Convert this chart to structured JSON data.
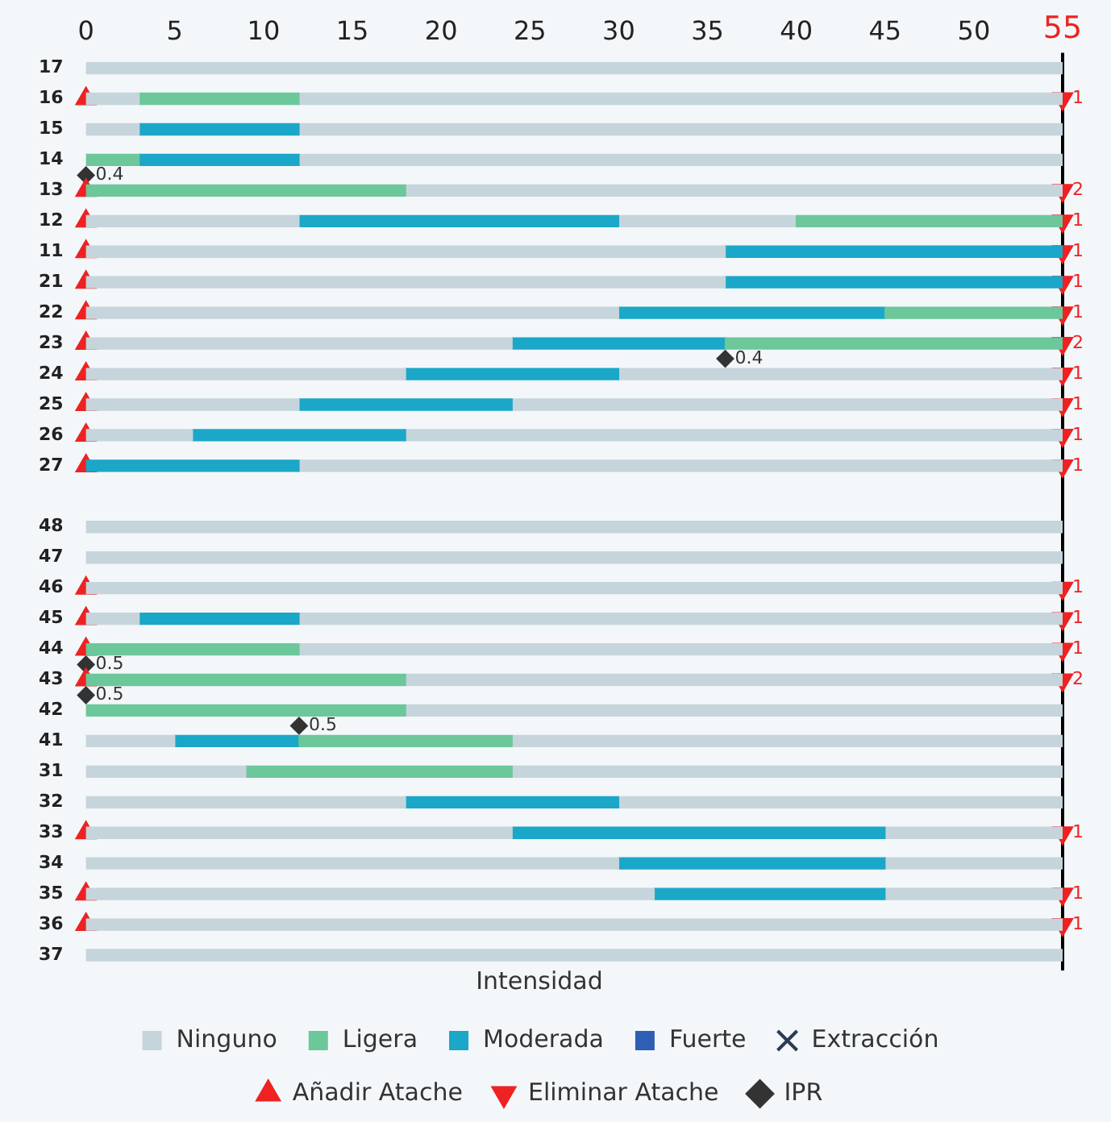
{
  "chart_data": {
    "type": "bar",
    "orientation": "horizontal",
    "categories": [
      "17",
      "16",
      "15",
      "14",
      "13",
      "12",
      "11",
      "21",
      "22",
      "23",
      "24",
      "25",
      "26",
      "27",
      null,
      "48",
      "47",
      "46",
      "45",
      "44",
      "43",
      "42",
      "41",
      "31",
      "32",
      "33",
      "34",
      "35",
      "36",
      "37"
    ],
    "xlim": [
      0,
      55
    ],
    "annotations": [
      {
        "text": "1",
        "x": 55,
        "y": "16"
      },
      {
        "text": "2",
        "x": 55,
        "y": "13"
      },
      {
        "text": "1",
        "x": 55,
        "y": "12"
      },
      {
        "text": "1",
        "x": 55,
        "y": "11"
      },
      {
        "text": "1",
        "x": 55,
        "y": "21"
      },
      {
        "text": "1",
        "x": 55,
        "y": "22"
      },
      {
        "text": "2",
        "x": 55,
        "y": "23"
      },
      {
        "text": "1",
        "x": 55,
        "y": "24"
      },
      {
        "text": "1",
        "x": 55,
        "y": "25"
      },
      {
        "text": "1",
        "x": 55,
        "y": "26"
      },
      {
        "text": "1",
        "x": 55,
        "y": "27"
      },
      {
        "text": "1",
        "x": 55,
        "y": "46"
      },
      {
        "text": "1",
        "x": 55,
        "y": "45"
      },
      {
        "text": "1",
        "x": 55,
        "y": "44"
      },
      {
        "text": "2",
        "x": 55,
        "y": "43"
      },
      {
        "text": "1",
        "x": 55,
        "y": "33"
      },
      {
        "text": "1",
        "x": 55,
        "y": "35"
      },
      {
        "text": "1",
        "x": 55,
        "y": "36"
      },
      {
        "text": "0.4",
        "x": 0,
        "y": "14"
      },
      {
        "text": "0.4",
        "x": 36,
        "y": "23"
      },
      {
        "text": "0.5",
        "x": 0,
        "y": "44"
      },
      {
        "text": "0.5",
        "x": 0,
        "y": "43"
      },
      {
        "text": "0.5",
        "x": 12,
        "y": "42"
      }
    ],
    "xticks": [
      0,
      5,
      10,
      15,
      20,
      25,
      30,
      35,
      40,
      45,
      50,
      55
    ],
    "grid": false,
    "legend": "bottom",
    "legend_title": "Intensidad",
    "ref_lines": [
      {
        "axis": "x",
        "value": 55,
        "color": "#000000"
      }
    ],
    "series": [
      {
        "name": "Ninguno",
        "color": "#c5d5db",
        "base": [
          0,
          0,
          0,
          null,
          null,
          0,
          0,
          0,
          0,
          0,
          0,
          0,
          0,
          null,
          null,
          0,
          0,
          0,
          0,
          null,
          null,
          null,
          0,
          0,
          0,
          0,
          0,
          0,
          0,
          0
        ],
        "values": [
          55,
          3,
          3,
          null,
          null,
          12,
          36,
          36,
          30,
          24,
          18,
          12,
          6,
          null,
          null,
          55,
          55,
          55,
          3,
          null,
          null,
          null,
          5,
          9,
          18,
          24,
          30,
          32,
          55,
          55
        ]
      },
      {
        "name": "Ligera",
        "color": "#6cc79a",
        "base": [
          null,
          3,
          null,
          0,
          0,
          40,
          null,
          null,
          45,
          36,
          null,
          null,
          null,
          null,
          null,
          null,
          null,
          null,
          null,
          0,
          0,
          0,
          12,
          9,
          null,
          null,
          null,
          null,
          null,
          null
        ],
        "values": [
          null,
          9,
          null,
          3,
          18,
          15,
          null,
          null,
          10,
          19,
          null,
          null,
          null,
          null,
          null,
          null,
          null,
          null,
          null,
          12,
          18,
          18,
          12,
          15,
          null,
          null,
          null,
          null,
          null,
          null
        ]
      },
      {
        "name": "Moderada",
        "color": "#1aa7c8",
        "base": [
          null,
          null,
          3,
          3,
          null,
          12,
          36,
          36,
          30,
          24,
          18,
          12,
          6,
          0,
          null,
          null,
          null,
          null,
          3,
          null,
          null,
          null,
          5,
          null,
          18,
          24,
          30,
          32,
          null,
          null
        ],
        "values": [
          null,
          null,
          9,
          9,
          null,
          18,
          19,
          19,
          15,
          12,
          12,
          12,
          12,
          12,
          null,
          null,
          null,
          null,
          9,
          null,
          null,
          null,
          7,
          null,
          12,
          21,
          15,
          13,
          null,
          null
        ]
      },
      {
        "name": "Fuerte",
        "color": "#2f5fb5",
        "base": [
          null,
          null,
          null,
          null,
          null,
          null,
          null,
          null,
          null,
          null,
          null,
          null,
          null,
          null,
          null,
          null,
          null,
          null,
          null,
          null,
          null,
          null,
          null,
          null,
          null,
          null,
          null,
          null,
          null,
          null
        ],
        "values": [
          null,
          null,
          null,
          null,
          null,
          null,
          null,
          null,
          null,
          null,
          null,
          null,
          null,
          null,
          null,
          null,
          null,
          null,
          null,
          null,
          null,
          null,
          null,
          null,
          null,
          null,
          null,
          null,
          null,
          null
        ]
      },
      {
        "color": "#c5d5db",
        "base": [
          null,
          12,
          12,
          12,
          18,
          30,
          null,
          null,
          null,
          null,
          30,
          24,
          18,
          12,
          null,
          null,
          null,
          null,
          12,
          12,
          18,
          18,
          24,
          24,
          30,
          45,
          45,
          45,
          null,
          null
        ],
        "values": [
          null,
          43,
          43,
          43,
          37,
          10,
          null,
          null,
          null,
          null,
          25,
          31,
          37,
          43,
          null,
          null,
          null,
          null,
          43,
          43,
          37,
          37,
          31,
          31,
          25,
          10,
          10,
          10,
          null,
          null
        ]
      },
      {
        "name": "Extracción",
        "type": "scatter",
        "marker": "cross",
        "color": "#2b3a55",
        "values": [
          null,
          null,
          null,
          null,
          null,
          null,
          null,
          null,
          null,
          null,
          null,
          null,
          null,
          null,
          null,
          null,
          null,
          null,
          null,
          null,
          null,
          null,
          null,
          null,
          null,
          null,
          null,
          null,
          null,
          null
        ]
      },
      {
        "name": "Añadir Atache",
        "type": "scatter",
        "marker": "triangle",
        "color": "#ee2222",
        "values": [
          null,
          0,
          null,
          null,
          0,
          0,
          0,
          0,
          0,
          0,
          0,
          0,
          0,
          0,
          null,
          null,
          null,
          0,
          0,
          0,
          0,
          null,
          null,
          null,
          null,
          0,
          null,
          0,
          0,
          null
        ]
      },
      {
        "name": "Eliminar Atache",
        "type": "scatter",
        "marker": "triangle",
        "color": "#ee2222",
        "values": [
          null,
          55,
          null,
          null,
          55,
          55,
          55,
          55,
          55,
          55,
          55,
          55,
          55,
          55,
          null,
          null,
          null,
          55,
          55,
          55,
          55,
          null,
          null,
          null,
          null,
          55,
          null,
          55,
          55,
          null
        ]
      },
      {
        "name": "IPR",
        "type": "scatter",
        "marker": "diamond",
        "color": "#333333",
        "values": [
          null,
          null,
          null,
          0,
          null,
          null,
          null,
          null,
          null,
          36,
          null,
          null,
          null,
          null,
          null,
          null,
          null,
          null,
          null,
          0,
          0,
          12,
          null,
          null,
          null,
          null,
          null,
          null,
          null,
          null
        ]
      }
    ]
  }
}
